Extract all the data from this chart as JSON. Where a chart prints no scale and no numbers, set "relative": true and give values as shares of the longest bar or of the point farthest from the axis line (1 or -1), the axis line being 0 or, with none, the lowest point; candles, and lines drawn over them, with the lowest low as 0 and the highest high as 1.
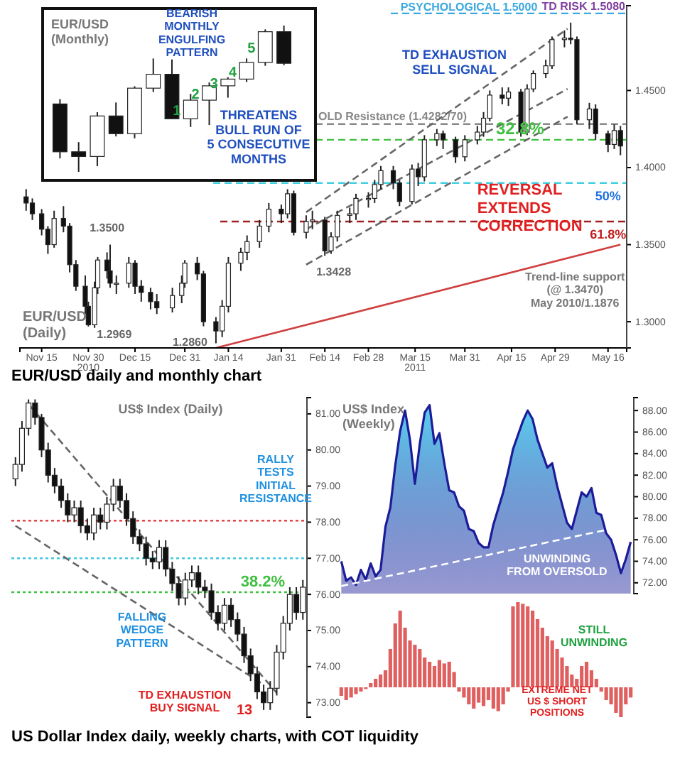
{
  "chart_data": [
    {
      "type": "candlestick",
      "title": "EUR/USD\n(Daily)",
      "x": [
        "2010-11-10",
        "2010-11-12",
        "2010-11-15",
        "2010-11-17",
        "2010-11-19",
        "2010-11-22",
        "2010-11-24",
        "2010-11-26",
        "2010-11-29",
        "2010-11-30",
        "2010-12-02",
        "2010-12-03",
        "2010-12-06",
        "2010-12-07",
        "2010-12-09",
        "2010-12-13",
        "2010-12-15",
        "2010-12-17",
        "2010-12-20",
        "2010-12-22",
        "2010-12-27",
        "2010-12-30",
        "2010-12-31",
        "2011-01-04",
        "2011-01-06",
        "2011-01-10",
        "2011-01-12",
        "2011-01-14",
        "2011-01-18",
        "2011-01-20",
        "2011-01-24",
        "2011-01-27",
        "2011-01-31",
        "2011-02-02",
        "2011-02-04",
        "2011-02-08",
        "2011-02-10",
        "2011-02-14",
        "2011-02-16",
        "2011-02-18",
        "2011-02-22",
        "2011-02-24",
        "2011-02-28",
        "2011-03-02",
        "2011-03-04",
        "2011-03-08",
        "2011-03-10",
        "2011-03-14",
        "2011-03-16",
        "2011-03-18",
        "2011-03-22",
        "2011-03-24",
        "2011-03-28",
        "2011-03-31",
        "2011-04-04",
        "2011-04-06",
        "2011-04-08",
        "2011-04-12",
        "2011-04-14",
        "2011-04-18",
        "2011-04-20",
        "2011-04-22",
        "2011-04-26",
        "2011-04-28",
        "2011-05-02",
        "2011-05-04",
        "2011-05-06",
        "2011-05-10",
        "2011-05-12",
        "2011-05-16",
        "2011-05-18",
        "2011-05-20"
      ],
      "ohlc": [
        [
          1.381,
          1.386,
          1.372,
          1.377
        ],
        [
          1.377,
          1.38,
          1.366,
          1.37
        ],
        [
          1.37,
          1.373,
          1.356,
          1.36
        ],
        [
          1.36,
          1.362,
          1.344,
          1.35
        ],
        [
          1.35,
          1.372,
          1.348,
          1.367
        ],
        [
          1.367,
          1.375,
          1.358,
          1.362
        ],
        [
          1.362,
          1.364,
          1.332,
          1.337
        ],
        [
          1.337,
          1.34,
          1.32,
          1.323
        ],
        [
          1.323,
          1.33,
          1.305,
          1.31
        ],
        [
          1.31,
          1.313,
          1.2969,
          1.298
        ],
        [
          1.298,
          1.326,
          1.296,
          1.322
        ],
        [
          1.322,
          1.342,
          1.318,
          1.34
        ],
        [
          1.34,
          1.345,
          1.328,
          1.333
        ],
        [
          1.333,
          1.35,
          1.322,
          1.325
        ],
        [
          1.325,
          1.33,
          1.318,
          1.325
        ],
        [
          1.325,
          1.342,
          1.322,
          1.338
        ],
        [
          1.338,
          1.34,
          1.318,
          1.323
        ],
        [
          1.323,
          1.327,
          1.313,
          1.319
        ],
        [
          1.319,
          1.322,
          1.308,
          1.313
        ],
        [
          1.313,
          1.318,
          1.305,
          1.309
        ],
        [
          1.309,
          1.322,
          1.306,
          1.317
        ],
        [
          1.317,
          1.33,
          1.312,
          1.325
        ],
        [
          1.325,
          1.34,
          1.322,
          1.338
        ],
        [
          1.338,
          1.342,
          1.327,
          1.331
        ],
        [
          1.331,
          1.333,
          1.297,
          1.3
        ],
        [
          1.3,
          1.303,
          1.286,
          1.294
        ],
        [
          1.294,
          1.314,
          1.29,
          1.31
        ],
        [
          1.31,
          1.342,
          1.306,
          1.338
        ],
        [
          1.338,
          1.348,
          1.333,
          1.345
        ],
        [
          1.345,
          1.356,
          1.34,
          1.352
        ],
        [
          1.352,
          1.366,
          1.348,
          1.362
        ],
        [
          1.362,
          1.377,
          1.358,
          1.373
        ],
        [
          1.373,
          1.376,
          1.364,
          1.37
        ],
        [
          1.37,
          1.386,
          1.367,
          1.383
        ],
        [
          1.383,
          1.385,
          1.356,
          1.358
        ],
        [
          1.358,
          1.369,
          1.354,
          1.365
        ],
        [
          1.365,
          1.372,
          1.36,
          1.366
        ],
        [
          1.366,
          1.368,
          1.3428,
          1.346
        ],
        [
          1.346,
          1.358,
          1.344,
          1.355
        ],
        [
          1.355,
          1.372,
          1.352,
          1.369
        ],
        [
          1.369,
          1.374,
          1.364,
          1.37
        ],
        [
          1.37,
          1.383,
          1.366,
          1.38
        ],
        [
          1.38,
          1.384,
          1.374,
          1.38
        ],
        [
          1.38,
          1.392,
          1.377,
          1.389
        ],
        [
          1.389,
          1.401,
          1.386,
          1.398
        ],
        [
          1.398,
          1.401,
          1.386,
          1.39
        ],
        [
          1.39,
          1.392,
          1.375,
          1.378
        ],
        [
          1.378,
          1.402,
          1.376,
          1.399
        ],
        [
          1.399,
          1.403,
          1.388,
          1.394
        ],
        [
          1.394,
          1.421,
          1.391,
          1.418
        ],
        [
          1.418,
          1.425,
          1.414,
          1.422
        ],
        [
          1.422,
          1.424,
          1.412,
          1.418
        ],
        [
          1.418,
          1.42,
          1.403,
          1.407
        ],
        [
          1.407,
          1.421,
          1.404,
          1.418
        ],
        [
          1.418,
          1.427,
          1.415,
          1.423
        ],
        [
          1.423,
          1.436,
          1.42,
          1.432
        ],
        [
          1.432,
          1.45,
          1.43,
          1.447
        ],
        [
          1.447,
          1.452,
          1.441,
          1.445
        ],
        [
          1.445,
          1.452,
          1.44,
          1.449
        ],
        [
          1.449,
          1.451,
          1.42,
          1.423
        ],
        [
          1.423,
          1.454,
          1.421,
          1.451
        ],
        [
          1.451,
          1.463,
          1.449,
          1.461
        ],
        [
          1.461,
          1.47,
          1.458,
          1.466
        ],
        [
          1.466,
          1.485,
          1.464,
          1.483
        ],
        [
          1.483,
          1.489,
          1.478,
          1.484
        ],
        [
          1.484,
          1.494,
          1.48,
          1.483
        ],
        [
          1.483,
          1.485,
          1.428,
          1.431
        ],
        [
          1.431,
          1.442,
          1.425,
          1.438
        ],
        [
          1.438,
          1.441,
          1.418,
          1.422
        ],
        [
          1.422,
          1.424,
          1.41,
          1.415
        ],
        [
          1.415,
          1.428,
          1.412,
          1.424
        ],
        [
          1.424,
          1.427,
          1.408,
          1.414
        ]
      ],
      "series": [
        {
          "type": "line",
          "color": "#d04040",
          "line_style": "solid",
          "x": [
            "2011-01-10",
            "2011-05-20"
          ],
          "values": [
            1.283,
            1.35
          ]
        },
        {
          "type": "line",
          "color": "#666666",
          "line_style": "dashed",
          "x": [
            "2011-02-08",
            "2011-05-03"
          ],
          "values": [
            1.371,
            1.49
          ]
        },
        {
          "type": "line",
          "color": "#666666",
          "line_style": "dashed",
          "x": [
            "2011-02-08",
            "2011-05-03"
          ],
          "values": [
            1.36,
            1.451
          ]
        },
        {
          "type": "line",
          "color": "#666666",
          "line_style": "dashed",
          "x": [
            "2011-02-08",
            "2011-05-03"
          ],
          "values": [
            1.337,
            1.433
          ]
        }
      ],
      "xlim": [
        "2010-11-08",
        "2011-05-22"
      ],
      "xticks": [
        {
          "value": "2010-11-15",
          "label": "Nov 15"
        },
        {
          "value": "2010-11-30",
          "label": "Nov 30\n2010"
        },
        {
          "value": "2010-12-15",
          "label": "Dec 15"
        },
        {
          "value": "2010-12-31",
          "label": "Dec 31"
        },
        {
          "value": "2011-01-14",
          "label": "Jan 14"
        },
        {
          "value": "2011-01-31",
          "label": "Jan 31"
        },
        {
          "value": "2011-02-14",
          "label": "Feb 14"
        },
        {
          "value": "2011-02-28",
          "label": "Feb 28"
        },
        {
          "value": "2011-03-15",
          "label": "Mar 15\n2011"
        },
        {
          "value": "2011-03-31",
          "label": "Mar 31"
        },
        {
          "value": "2011-04-15",
          "label": "Apr 15"
        },
        {
          "value": "2011-04-29",
          "label": "Apr 29"
        },
        {
          "value": "2011-05-16",
          "label": "May 16"
        }
      ],
      "ylim": [
        1.283,
        1.505
      ],
      "yticks": [
        {
          "value": 1.3,
          "label": "1.3000"
        },
        {
          "value": 1.35,
          "label": "1.3500"
        },
        {
          "value": 1.4,
          "label": "1.4000"
        },
        {
          "value": 1.45,
          "label": "1.4500"
        }
      ],
      "ref_lines": [
        {
          "axis": "y",
          "value": 1.5,
          "label": "PSYCHOLOGICAL 1.5000",
          "color": "#3aa8e0",
          "line_style": "dashed"
        },
        {
          "axis": "y",
          "value": 1.4282,
          "label": "OLD Resistance (1.4282/70)",
          "color": "#888888",
          "line_style": "dashed"
        },
        {
          "axis": "y",
          "value": 1.418,
          "color": "#40c040",
          "line_style": "dashed"
        },
        {
          "axis": "y",
          "value": 1.39,
          "color": "#40d0e0",
          "line_style": "dashed"
        },
        {
          "axis": "y",
          "value": 1.365,
          "color": "#a02020",
          "line_style": "dashed"
        }
      ],
      "annotations": [
        "EUR/USD daily and monthly chart",
        "TD RISK 1.5080",
        {
          "text": "1.3500",
          "x": "2010-12-06",
          "y": 1.351
        },
        {
          "text": "1.2969",
          "x": "2010-11-30",
          "y": 1.2969
        },
        {
          "text": "1.2860",
          "x": "2011-01-10",
          "y": 1.286
        },
        {
          "text": "1.3428",
          "x": "2011-02-14",
          "y": 1.3428
        },
        {
          "text": "TD EXHAUSTION\nSELL SIGNAL",
          "x": "2011-04-14",
          "y": 1.452
        },
        {
          "text": "REVERSAL\nEXTENDS\nCORRECTION",
          "x": "2011-05-16",
          "y": 1.41
        },
        {
          "text": "Trend-line support\n(@ 1.3470)\nMay 2010/1.1876",
          "x": "2011-05-20",
          "y": 1.347
        },
        {
          "text": "32.8%",
          "x": "2011-05-06",
          "y": 1.418
        },
        {
          "text": "50%",
          "x": "2011-05-16",
          "y": 1.39
        },
        {
          "text": "61.8%",
          "x": "2011-05-16",
          "y": 1.365
        }
      ]
    },
    {
      "type": "candlestick",
      "relative": true,
      "title": "EUR/USD\n(Monthly)",
      "categories": [
        null,
        null,
        null,
        null,
        null,
        null,
        null,
        null,
        null,
        null,
        null,
        null,
        null
      ],
      "ohlc": [
        [
          0.464,
          0.497,
          0.092,
          0.137
        ],
        [
          0.137,
          0.203,
          0,
          0.105
        ],
        [
          0.105,
          0.408,
          0.039,
          0.382
        ],
        [
          0.382,
          0.474,
          0.242,
          0.261
        ],
        [
          0.261,
          0.585,
          0.229,
          0.572
        ],
        [
          0.572,
          0.775,
          0.546,
          0.667
        ],
        [
          0.667,
          0.768,
          0.363,
          0.363
        ],
        [
          0.363,
          0.533,
          0.307,
          0.49
        ],
        [
          0.49,
          0.611,
          0.32,
          0.588
        ],
        [
          0.588,
          0.647,
          0.507,
          0.634
        ],
        [
          0.634,
          0.775,
          0.614,
          0.748
        ],
        [
          0.748,
          0.974,
          0.725,
          0.958
        ],
        [
          0.958,
          1,
          0.729,
          0.742
        ]
      ],
      "value_labels": [
        null,
        null,
        null,
        null,
        null,
        null,
        null,
        "1",
        "2",
        "3",
        "4",
        "5",
        null
      ],
      "annotations": [
        "BEARISH\nMONTHLY\nENGULFING\nPATTERN",
        "THREATENS\nBULL RUN OF\n5 CONSECUTIVE\nMONTHS"
      ]
    },
    {
      "type": "candlestick",
      "title": "US$ Index (Daily)",
      "categories": [
        null,
        null,
        null,
        null,
        null,
        null,
        null,
        null,
        null,
        null,
        null,
        null,
        null,
        null,
        null,
        null,
        null,
        null,
        null,
        null,
        null,
        null,
        null,
        null,
        null,
        null,
        null,
        null,
        null,
        null,
        null,
        null,
        null,
        null,
        null,
        null,
        null,
        null,
        null,
        null,
        null,
        null,
        null,
        null,
        null
      ],
      "ohlc": [
        [
          79.2,
          79.8,
          79.0,
          79.6
        ],
        [
          79.6,
          80.8,
          79.4,
          80.6
        ],
        [
          80.6,
          81.4,
          80.4,
          81.3
        ],
        [
          81.3,
          81.4,
          80.7,
          80.9
        ],
        [
          80.9,
          81.0,
          79.8,
          80.0
        ],
        [
          80.0,
          80.2,
          79.1,
          79.3
        ],
        [
          79.3,
          79.5,
          78.8,
          79.0
        ],
        [
          79.0,
          79.2,
          78.4,
          78.6
        ],
        [
          78.6,
          78.8,
          78.0,
          78.2
        ],
        [
          78.2,
          78.6,
          78.0,
          78.4
        ],
        [
          78.4,
          78.6,
          77.7,
          77.9
        ],
        [
          77.9,
          78.1,
          77.5,
          77.7
        ],
        [
          77.7,
          78.4,
          77.5,
          78.2
        ],
        [
          78.2,
          78.4,
          77.8,
          78.0
        ],
        [
          78.0,
          78.7,
          77.8,
          78.5
        ],
        [
          78.5,
          79.2,
          78.3,
          79.0
        ],
        [
          79.0,
          79.2,
          78.4,
          78.6
        ],
        [
          78.6,
          78.8,
          77.9,
          78.1
        ],
        [
          78.1,
          78.3,
          77.4,
          77.6
        ],
        [
          77.6,
          77.8,
          77.2,
          77.4
        ],
        [
          77.4,
          77.6,
          76.8,
          77.0
        ],
        [
          77.0,
          77.2,
          76.7,
          76.9
        ],
        [
          76.9,
          77.5,
          76.7,
          77.3
        ],
        [
          77.3,
          77.5,
          76.5,
          76.7
        ],
        [
          76.7,
          76.9,
          76.1,
          76.3
        ],
        [
          76.3,
          76.5,
          75.7,
          75.9
        ],
        [
          75.9,
          76.6,
          75.7,
          76.4
        ],
        [
          76.4,
          76.8,
          76.2,
          76.6
        ],
        [
          76.6,
          76.8,
          76.0,
          76.2
        ],
        [
          76.2,
          76.4,
          75.9,
          76.1
        ],
        [
          76.1,
          76.3,
          75.3,
          75.5
        ],
        [
          75.5,
          75.7,
          75.0,
          75.2
        ],
        [
          75.2,
          75.9,
          75.0,
          75.7
        ],
        [
          75.7,
          75.9,
          75.1,
          75.3
        ],
        [
          75.3,
          75.5,
          74.7,
          74.9
        ],
        [
          74.9,
          75.1,
          74.1,
          74.3
        ],
        [
          74.3,
          74.5,
          73.6,
          73.8
        ],
        [
          73.8,
          74.0,
          73.1,
          73.3
        ],
        [
          73.3,
          73.5,
          72.8,
          73.0
        ],
        [
          73.0,
          73.6,
          72.8,
          73.4
        ],
        [
          73.4,
          74.6,
          73.2,
          74.4
        ],
        [
          74.4,
          75.4,
          74.2,
          75.2
        ],
        [
          75.2,
          76.2,
          75.0,
          76.0
        ],
        [
          76.0,
          76.2,
          75.3,
          75.5
        ],
        [
          75.5,
          76.4,
          75.3,
          76.2
        ]
      ],
      "series": [
        {
          "type": "line",
          "color": "#666666",
          "line_style": "dashed",
          "values": [
            null,
            null,
            81.27,
            null,
            null,
            null,
            null,
            null,
            null,
            null,
            null,
            null,
            null,
            null,
            null,
            null,
            null,
            null,
            null,
            null,
            null,
            null,
            null,
            null,
            null,
            null,
            null,
            null,
            null,
            null,
            null,
            null,
            null,
            null,
            null,
            null,
            null,
            null,
            null,
            null,
            73.27,
            null,
            null,
            null,
            null
          ]
        },
        {
          "type": "line",
          "color": "#666666",
          "line_style": "dashed",
          "values": [
            77.9,
            null,
            null,
            null,
            null,
            null,
            null,
            null,
            null,
            null,
            null,
            null,
            null,
            null,
            null,
            null,
            null,
            null,
            null,
            null,
            null,
            null,
            null,
            null,
            null,
            null,
            null,
            null,
            null,
            null,
            null,
            null,
            null,
            null,
            null,
            null,
            null,
            null,
            73.5,
            null,
            null,
            null,
            null,
            null,
            null
          ]
        }
      ],
      "ylim": [
        72.6,
        81.45
      ],
      "yticks": [
        {
          "value": 73,
          "label": "73.00"
        },
        {
          "value": 74,
          "label": "74.00"
        },
        {
          "value": 75,
          "label": "75.00"
        },
        {
          "value": 76,
          "label": "76.00"
        },
        {
          "value": 77,
          "label": "77.00"
        },
        {
          "value": 78,
          "label": "78.00"
        },
        {
          "value": 79,
          "label": "79.00"
        },
        {
          "value": 80,
          "label": "80.00"
        },
        {
          "value": 81,
          "label": "81.00"
        }
      ],
      "ref_lines": [
        {
          "axis": "y",
          "value": 78.04,
          "color": "#e03030",
          "line_style": "dotted"
        },
        {
          "axis": "y",
          "value": 77.0,
          "color": "#40c8e0",
          "line_style": "dotted"
        },
        {
          "axis": "y",
          "value": 76.06,
          "color": "#40c040",
          "line_style": "dotted"
        }
      ],
      "annotations": [
        "US Dollar Index daily, weekly charts, with COT liquidity",
        "RALLY\nTESTS\nINITIAL\nRESISTANCE",
        "FALLING\nWEDGE\nPATTERN",
        "TD EXHAUSTION\nBUY SIGNAL",
        "13",
        {
          "text": "38.2%",
          "y": 76.06
        }
      ]
    },
    {
      "type": "area",
      "title": "US$ Index\n(Weekly)",
      "categories": [
        null,
        null,
        null,
        null,
        null,
        null,
        null,
        null,
        null,
        null,
        null,
        null,
        null,
        null,
        null,
        null,
        null,
        null,
        null,
        null,
        null,
        null,
        null,
        null,
        null,
        null,
        null,
        null,
        null,
        null,
        null,
        null,
        null,
        null,
        null,
        null,
        null,
        null,
        null,
        null,
        null,
        null,
        null,
        null,
        null,
        null,
        null,
        null,
        null,
        null,
        null,
        null,
        null,
        null,
        null,
        null,
        null,
        null,
        null,
        null
      ],
      "series": [
        {
          "color": "#1c1c99",
          "values": [
            74.0,
            72.2,
            72.5,
            71.8,
            73.2,
            72.3,
            73.8,
            72.6,
            73.2,
            77.2,
            79.0,
            82.9,
            86.1,
            88.0,
            85.3,
            81.2,
            84.9,
            87.8,
            88.5,
            84.9,
            85.9,
            83.1,
            80.6,
            80.4,
            79.1,
            78.7,
            77.0,
            76.8,
            75.7,
            75.3,
            75.3,
            77.4,
            78.9,
            80.4,
            82.3,
            84.4,
            85.7,
            87.0,
            88.0,
            87.2,
            85.3,
            84.0,
            82.7,
            83.1,
            81.0,
            79.3,
            77.6,
            77.0,
            78.7,
            80.4,
            80.0,
            80.8,
            78.5,
            78.3,
            76.6,
            76.0,
            74.6,
            72.9,
            74.2,
            75.8
          ]
        },
        {
          "type": "line",
          "color": "#ffffff",
          "line_style": "dashed",
          "values": [
            71.7,
            null,
            null,
            null,
            null,
            null,
            null,
            null,
            null,
            null,
            null,
            null,
            null,
            null,
            null,
            null,
            null,
            null,
            null,
            null,
            null,
            null,
            null,
            null,
            null,
            null,
            null,
            null,
            null,
            null,
            null,
            null,
            null,
            null,
            null,
            null,
            null,
            null,
            null,
            null,
            null,
            null,
            null,
            null,
            null,
            null,
            null,
            null,
            null,
            null,
            null,
            null,
            null,
            null,
            null,
            null,
            null,
            null,
            null,
            77.4
          ]
        }
      ],
      "ylim": [
        71,
        89.2
      ],
      "yticks": [
        {
          "value": 72,
          "label": "72.00"
        },
        {
          "value": 74,
          "label": "74.00"
        },
        {
          "value": 76,
          "label": "76.00"
        },
        {
          "value": 78,
          "label": "78.00"
        },
        {
          "value": 80,
          "label": "80.00"
        },
        {
          "value": 82,
          "label": "82.00"
        },
        {
          "value": 84,
          "label": "84.00"
        },
        {
          "value": 86,
          "label": "86.00"
        },
        {
          "value": 88,
          "label": "88.00"
        }
      ],
      "annotations": [
        "UNWINDING\nFROM OVERSOLD"
      ]
    },
    {
      "type": "bar",
      "relative": true,
      "color": "#e06060",
      "categories": [
        null,
        null,
        null,
        null,
        null,
        null,
        null,
        null,
        null,
        null,
        null,
        null,
        null,
        null,
        null,
        null,
        null,
        null,
        null,
        null,
        null,
        null,
        null,
        null,
        null,
        null,
        null,
        null,
        null,
        null,
        null,
        null,
        null,
        null,
        null,
        null,
        null,
        null,
        null,
        null,
        null,
        null,
        null,
        null,
        null,
        null,
        null,
        null,
        null,
        null,
        null,
        null,
        null,
        null,
        null,
        null,
        null,
        null,
        null,
        null
      ],
      "values": [
        -0.1,
        -0.15,
        -0.12,
        -0.08,
        -0.05,
        -0.02,
        0.05,
        0.1,
        0.15,
        0.2,
        0.45,
        0.75,
        0.9,
        0.7,
        0.55,
        0.5,
        0.45,
        0.35,
        0.3,
        0.25,
        0.32,
        0.28,
        0.3,
        0.18,
        -0.05,
        -0.12,
        -0.2,
        -0.25,
        -0.18,
        -0.22,
        -0.15,
        -0.25,
        -0.28,
        -0.2,
        -0.05,
        0.95,
        1,
        0.98,
        0.95,
        0.9,
        0.8,
        0.7,
        0.6,
        0.55,
        0.45,
        0.35,
        0.25,
        0.15,
        0.1,
        0.25,
        0.3,
        0.2,
        0.1,
        -0.05,
        -0.15,
        -0.2,
        -0.3,
        -0.35,
        -0.2,
        -0.12
      ],
      "annotations": [
        "STILL\nUNWINDING",
        "EXTREME NET\nUS $ SHORT\nPOSITIONS"
      ]
    }
  ]
}
